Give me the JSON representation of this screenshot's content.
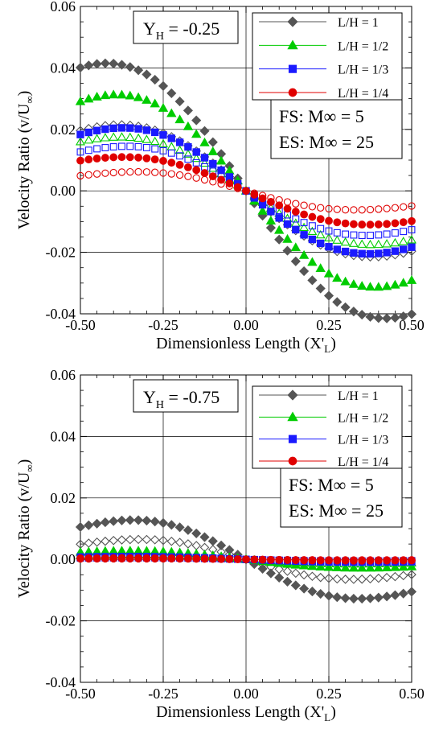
{
  "colors": {
    "lh1": "#555555",
    "lh2": "#00cc00",
    "lh3": "#1a1aff",
    "lh4": "#e00000"
  },
  "chart_data": [
    {
      "type": "scatter",
      "annotation": "Y_H = -0.25",
      "annotation_parts": {
        "base": "Y",
        "sub": "H",
        "rest": " = -0.25"
      },
      "xlabel": "Dimensionless Length (X'_L)",
      "ylabel": "Velocity Ratio (v/U_∞)",
      "xlim": [
        -0.5,
        0.5
      ],
      "ylim": [
        -0.04,
        0.06
      ],
      "xticks": [
        "-0.50",
        "-0.25",
        "0.00",
        "0.25",
        "0.50"
      ],
      "yticks": [
        "-0.04",
        "-0.02",
        "0.00",
        "0.02",
        "0.04",
        "0.06"
      ],
      "grid": true,
      "legend_position": "top-right",
      "info_lines": [
        "FS: M∞ = 5",
        "ES: M∞ = 25"
      ],
      "series": [
        {
          "name": "L/H = 1",
          "marker": "diamond",
          "color_key": "lh1",
          "filled": {
            "amp": 0.0415,
            "xmax": -0.42
          },
          "open": {
            "amp": 0.0215,
            "xmax": -0.38
          }
        },
        {
          "name": "L/H = 1/2",
          "marker": "triangle",
          "color_key": "lh2",
          "filled": {
            "amp": 0.0313,
            "xmax": -0.39
          },
          "open": {
            "amp": 0.0175,
            "xmax": -0.38
          }
        },
        {
          "name": "L/H = 1/3",
          "marker": "square",
          "color_key": "lh3",
          "filled": {
            "amp": 0.0205,
            "xmax": -0.37
          },
          "open": {
            "amp": 0.0145,
            "xmax": -0.36
          }
        },
        {
          "name": "L/H = 1/4",
          "marker": "circle",
          "color_key": "lh4",
          "filled": {
            "amp": 0.011,
            "xmax": -0.37
          },
          "open": {
            "amp": 0.0062,
            "xmax": -0.33
          }
        }
      ]
    },
    {
      "type": "scatter",
      "annotation": "Y_H = -0.75",
      "annotation_parts": {
        "base": "Y",
        "sub": "H",
        "rest": " = -0.75"
      },
      "xlabel": "Dimensionless Length (X'_L)",
      "ylabel": "Velocity Ratio (v/U_∞)",
      "xlim": [
        -0.5,
        0.5
      ],
      "ylim": [
        -0.04,
        0.06
      ],
      "xticks": [
        "-0.50",
        "-0.25",
        "0.00",
        "0.25",
        "0.50"
      ],
      "yticks": [
        "-0.04",
        "-0.02",
        "0.00",
        "0.02",
        "0.04",
        "0.06"
      ],
      "grid": true,
      "legend_position": "top-right",
      "info_lines": [
        "FS: M∞ = 5",
        "ES: M∞ = 25"
      ],
      "series": [
        {
          "name": "L/H = 1",
          "marker": "diamond",
          "color_key": "lh1",
          "filled": {
            "amp": 0.0128,
            "xmax": -0.34
          },
          "open": {
            "amp": 0.0065,
            "xmax": -0.32
          }
        },
        {
          "name": "L/H = 1/2",
          "marker": "triangle",
          "color_key": "lh2",
          "filled": {
            "amp": 0.0028,
            "xmax": -0.35
          },
          "open": {
            "amp": 0.0015,
            "xmax": -0.33
          }
        },
        {
          "name": "L/H = 1/3",
          "marker": "square",
          "color_key": "lh3",
          "filled": {
            "amp": 0.0009,
            "xmax": -0.35
          },
          "open": {
            "amp": 0.0005,
            "xmax": -0.33
          }
        },
        {
          "name": "L/H = 1/4",
          "marker": "circle",
          "color_key": "lh4",
          "filled": {
            "amp": 0.0004,
            "xmax": -0.35
          },
          "open": {
            "amp": 0.0002,
            "xmax": -0.33
          }
        }
      ]
    }
  ]
}
